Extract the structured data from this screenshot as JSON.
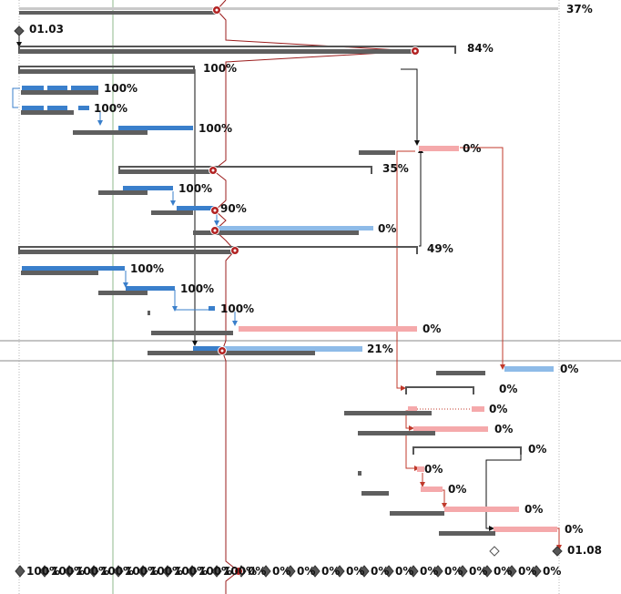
{
  "colors": {
    "baseline": "#5f5f5f",
    "task_blue": "#3a7fcb",
    "task_light_blue": "#8ebbe8",
    "task_pink": "#f5a9ab",
    "critical_red": "#c0392b",
    "link_black": "#111111",
    "summary_gray": "#7a7a7a",
    "status_line": "#9b1c1c",
    "grid_green": "#8fb98b"
  },
  "rows": [
    {
      "id": "r0",
      "kind": "summary",
      "label": "37%"
    },
    {
      "id": "r1",
      "kind": "milestone",
      "label": "01.03"
    },
    {
      "id": "r2",
      "kind": "summary",
      "label": "84%"
    },
    {
      "id": "r3",
      "kind": "summary",
      "label": "100%"
    },
    {
      "id": "r4",
      "kind": "task",
      "label": "100%"
    },
    {
      "id": "r5",
      "kind": "task",
      "label": "100%"
    },
    {
      "id": "r6",
      "kind": "task",
      "label": "100%"
    },
    {
      "id": "r7",
      "kind": "task",
      "label": "0%"
    },
    {
      "id": "r8",
      "kind": "summary",
      "label": "35%"
    },
    {
      "id": "r9",
      "kind": "task",
      "label": "100%"
    },
    {
      "id": "r10",
      "kind": "task",
      "label": "90%"
    },
    {
      "id": "r11",
      "kind": "task",
      "label": "0%"
    },
    {
      "id": "r12",
      "kind": "summary",
      "label": "49%"
    },
    {
      "id": "r13",
      "kind": "task",
      "label": "100%"
    },
    {
      "id": "r14",
      "kind": "task",
      "label": "100%"
    },
    {
      "id": "r15",
      "kind": "task",
      "label": "100%"
    },
    {
      "id": "r16",
      "kind": "task",
      "label": "0%"
    },
    {
      "id": "r17",
      "kind": "task",
      "label": "21%"
    },
    {
      "id": "r18",
      "kind": "task",
      "label": "0%"
    },
    {
      "id": "r19",
      "kind": "summary",
      "label": "0%"
    },
    {
      "id": "r20",
      "kind": "task",
      "label": "0%"
    },
    {
      "id": "r21",
      "kind": "task",
      "label": "0%"
    },
    {
      "id": "r22",
      "kind": "summary",
      "label": "0%"
    },
    {
      "id": "r23",
      "kind": "task",
      "label": "0%"
    },
    {
      "id": "r24",
      "kind": "task",
      "label": "0%"
    },
    {
      "id": "r25",
      "kind": "task",
      "label": "0%"
    },
    {
      "id": "r26",
      "kind": "task",
      "label": "0%"
    },
    {
      "id": "r27",
      "kind": "milestone",
      "label": "01.08"
    }
  ],
  "bottom_row_labels": [
    "100%",
    "100%",
    "100%",
    "100%",
    "100%",
    "100%",
    "100%",
    "100%",
    "100%",
    "0%",
    "0%",
    "0%",
    "0%",
    "0%",
    "0%",
    "0%",
    "0%",
    "0%",
    "0%",
    "0%",
    "0%",
    "0%"
  ]
}
